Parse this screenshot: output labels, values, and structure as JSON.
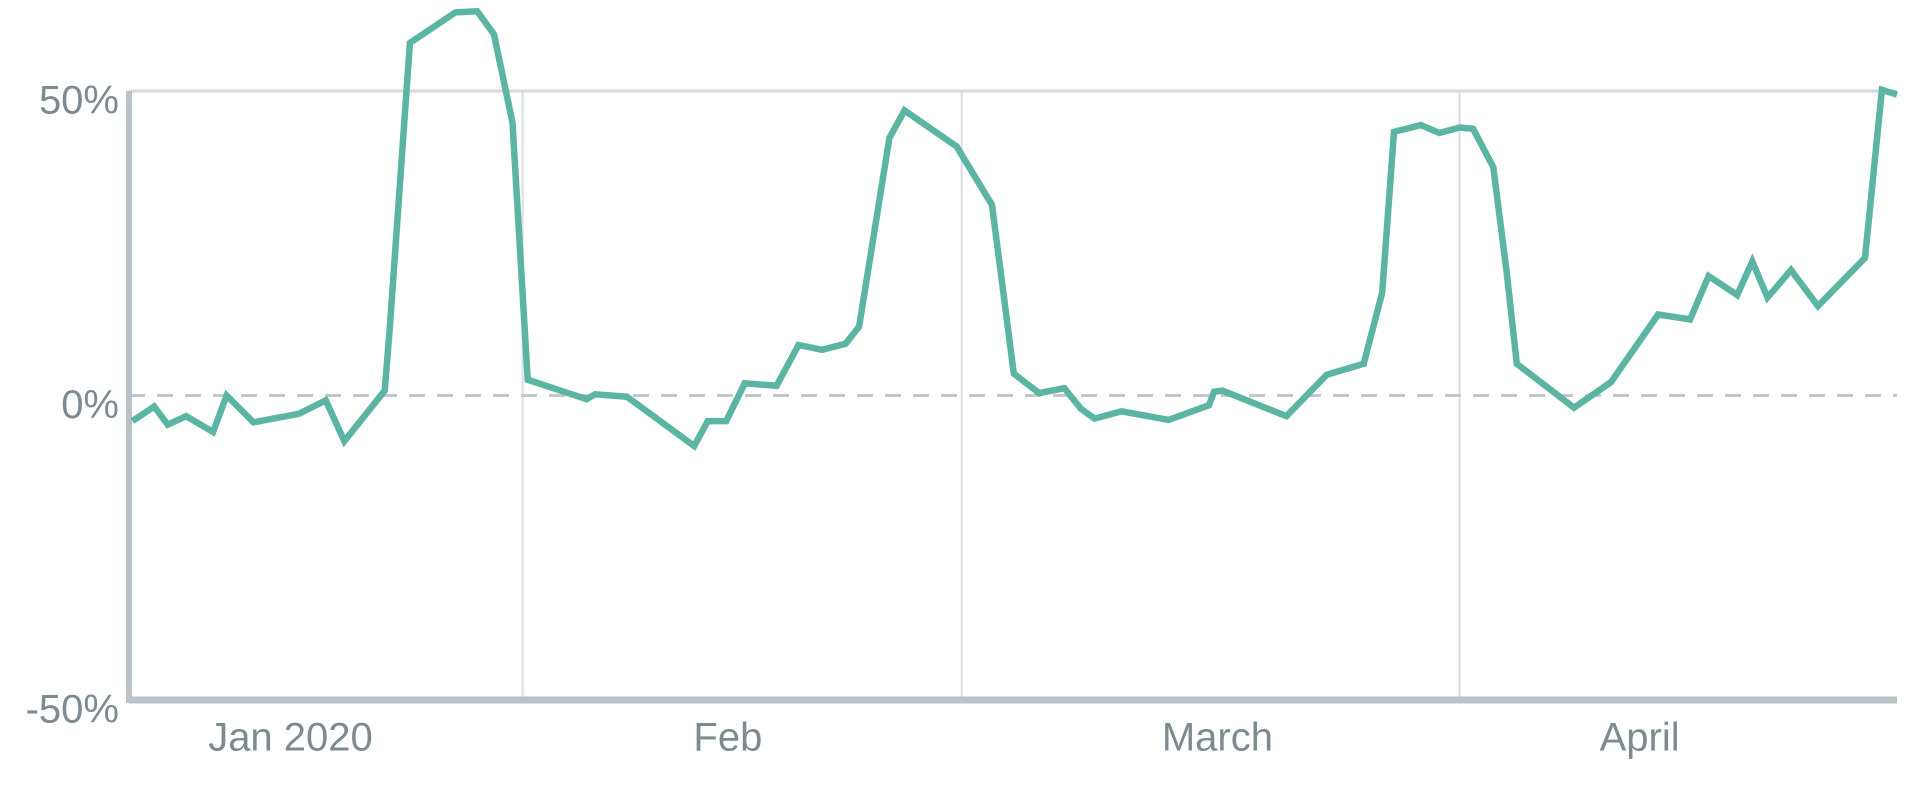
{
  "chart_data": {
    "type": "line",
    "series": [
      {
        "color": "#5bb5a2",
        "x": [
          0.2,
          1.5,
          2.3,
          3.4,
          5.0,
          5.8,
          7.4,
          10.1,
          11.7,
          12.8,
          15.2,
          15.5,
          16.7,
          19.4,
          20.7,
          21.7,
          22.8,
          23.7,
          27.2,
          27.7,
          29.6,
          33.6,
          34.4,
          35.5,
          36.6,
          38.5,
          39.8,
          41.2,
          42.6,
          43.4,
          45.2,
          46.1,
          49.2,
          51.3,
          52.6,
          54.1,
          55.6,
          56.6,
          57.4,
          59.0,
          61.8,
          64.2,
          64.5,
          65.0,
          68.8,
          71.2,
          73.4,
          74.5,
          75.2,
          76.8,
          77.9,
          79.1,
          79.9,
          81.1,
          81.9,
          82.5,
          85.9,
          88.1,
          90.9,
          92.8,
          93.9,
          95.6,
          96.5,
          97.4,
          98.8,
          100.4,
          103.2,
          104.2,
          105.1
        ],
        "values": [
          -4.2,
          -1.8,
          -4.8,
          -3.4,
          -6.0,
          0,
          -4.4,
          -3.0,
          -0.8,
          -7.5,
          0.8,
          10.9,
          57.9,
          62.9,
          63.1,
          59.3,
          44.8,
          2.6,
          -0.6,
          0.2,
          -0.2,
          -8.3,
          -4.2,
          -4.2,
          2.0,
          1.6,
          8.3,
          7.5,
          8.5,
          11.3,
          42.3,
          46.8,
          40.9,
          31.3,
          3.6,
          0.4,
          1.2,
          -2.2,
          -3.8,
          -2.6,
          -4.0,
          -1.6,
          0.6,
          0.8,
          -3.4,
          3.4,
          5.2,
          16.9,
          43.3,
          44.4,
          43.1,
          44.0,
          43.8,
          37.5,
          20.2,
          5.2,
          -2.0,
          2.2,
          13.3,
          12.5,
          19.6,
          16.5,
          22.0,
          16.1,
          20.6,
          14.7,
          22.6,
          50.2,
          49.4
        ]
      }
    ],
    "xlim": [
      0,
      105.1
    ],
    "xticks": [
      {
        "value": 9.6,
        "label": "Jan 2020"
      },
      {
        "value": 35.6,
        "label": "Feb"
      },
      {
        "value": 64.7,
        "label": "March"
      },
      {
        "value": 89.8,
        "label": "April"
      }
    ],
    "xgrid": [
      23.4,
      49.5,
      79.1
    ],
    "ylim": [
      -50,
      50
    ],
    "yticks": [
      {
        "value": 50,
        "label": "50%"
      },
      {
        "value": 0,
        "label": "0%"
      },
      {
        "value": -50,
        "label": "-50%"
      }
    ],
    "grid": true
  }
}
